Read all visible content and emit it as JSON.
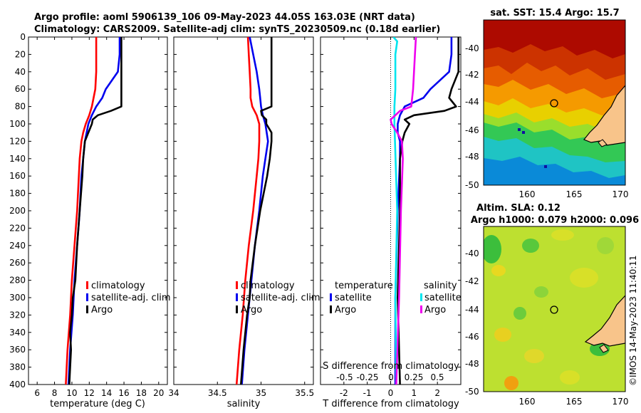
{
  "header": {
    "line1": "Argo profile: aoml 5906139_106 09-May-2023 44.05S 163.03E (NRT data)",
    "line2": "Climatology: CARS2009. Satellite-adj clim: synTS_20230509.nc (0.18d earlier)"
  },
  "credit": "©IMOS 14-May-2023 11:40:11",
  "colors": {
    "climatology": "#ff0000",
    "satellite": "#0000ee",
    "argo": "#000000",
    "t_satellite": "#0000ee",
    "s_satellite": "#00e5ee",
    "s_argo": "#ee00ee"
  },
  "chart_data": [
    {
      "type": "line",
      "name": "temperature-profile",
      "xlabel": "temperature (deg C)",
      "ylabel": "",
      "xlim": [
        5,
        21
      ],
      "ylim": [
        400,
        0
      ],
      "xticks": [
        "6",
        "8",
        "10",
        "12",
        "14",
        "16",
        "18",
        "20"
      ],
      "yticks": [
        "0",
        "20",
        "40",
        "60",
        "80",
        "100",
        "120",
        "140",
        "160",
        "180",
        "200",
        "220",
        "240",
        "260",
        "280",
        "300",
        "320",
        "340",
        "360",
        "380",
        "400"
      ],
      "legend": [
        "climatology",
        "satellite-adj. clim",
        "Argo"
      ],
      "series": [
        {
          "name": "climatology",
          "depth": [
            0,
            20,
            40,
            60,
            80,
            90,
            100,
            110,
            120,
            140,
            160,
            200,
            240,
            280,
            320,
            360,
            400
          ],
          "values": [
            12.8,
            12.8,
            12.8,
            12.7,
            12.3,
            12.0,
            11.6,
            11.3,
            11.1,
            10.9,
            10.8,
            10.6,
            10.3,
            10.0,
            9.8,
            9.5,
            9.3
          ]
        },
        {
          "name": "satellite-adj. clim",
          "depth": [
            0,
            20,
            40,
            50,
            60,
            70,
            80,
            90,
            100,
            120,
            140,
            160,
            200,
            240,
            280,
            320,
            360,
            400
          ],
          "values": [
            15.5,
            15.5,
            15.3,
            14.6,
            13.9,
            13.5,
            12.8,
            12.3,
            11.9,
            11.5,
            11.3,
            11.1,
            10.9,
            10.6,
            10.3,
            10.1,
            9.8,
            9.6
          ]
        },
        {
          "name": "Argo",
          "depth": [
            0,
            20,
            40,
            60,
            70,
            80,
            85,
            90,
            95,
            100,
            110,
            120,
            140,
            160,
            200,
            240,
            280,
            300,
            320,
            340,
            360,
            380,
            400
          ],
          "values": [
            15.7,
            15.7,
            15.7,
            15.7,
            15.7,
            15.7,
            14.5,
            13.0,
            12.4,
            12.3,
            11.9,
            11.5,
            11.3,
            11.2,
            10.9,
            10.6,
            10.4,
            10.1,
            10.0,
            9.8,
            9.9,
            9.8,
            9.7
          ]
        }
      ]
    },
    {
      "type": "line",
      "name": "salinity-profile",
      "xlabel": "salinity",
      "xlim": [
        34.0,
        35.6
      ],
      "ylim": [
        400,
        0
      ],
      "xticks": [
        "34",
        "34.5",
        "35",
        "35.5"
      ],
      "legend": [
        "climatology",
        "satellite-adj. clim",
        "Argo"
      ],
      "series": [
        {
          "name": "climatology",
          "depth": [
            0,
            20,
            40,
            60,
            70,
            80,
            90,
            100,
            120,
            140,
            160,
            200,
            240,
            280,
            320,
            360,
            400
          ],
          "values": [
            34.85,
            34.86,
            34.87,
            34.88,
            34.88,
            34.9,
            34.95,
            34.98,
            34.98,
            34.97,
            34.95,
            34.91,
            34.86,
            34.82,
            34.79,
            34.75,
            34.72
          ]
        },
        {
          "name": "satellite-adj. clim",
          "depth": [
            0,
            20,
            40,
            60,
            70,
            80,
            90,
            100,
            120,
            140,
            160,
            200,
            240,
            280,
            320,
            360,
            400
          ],
          "values": [
            34.87,
            34.91,
            34.95,
            34.98,
            34.99,
            35.0,
            35.02,
            35.05,
            35.08,
            35.05,
            35.02,
            34.98,
            34.93,
            34.89,
            34.85,
            34.81,
            34.78
          ]
        },
        {
          "name": "Argo",
          "depth": [
            0,
            20,
            40,
            60,
            80,
            85,
            90,
            95,
            100,
            110,
            120,
            140,
            160,
            200,
            240,
            280,
            300,
            320,
            360,
            400
          ],
          "values": [
            35.12,
            35.12,
            35.12,
            35.12,
            35.12,
            35.0,
            35.01,
            35.06,
            35.06,
            35.12,
            35.12,
            35.1,
            35.07,
            34.99,
            34.93,
            34.88,
            34.87,
            34.84,
            34.8,
            34.77
          ]
        }
      ]
    },
    {
      "type": "line",
      "name": "difference-profile",
      "xlabel": "T difference from climatology",
      "xlim": [
        -3.0,
        3.0
      ],
      "ylim": [
        400,
        0
      ],
      "xticks": [
        "-2",
        "-1",
        "0",
        "1",
        "2"
      ],
      "top_axis_label": "S difference from climatology",
      "top_axis_ticks": [
        "-0.5",
        "-0.25",
        "0",
        "0.25",
        "0.5"
      ],
      "legend_t_title": "temperature",
      "legend_t": [
        "satellite",
        "Argo"
      ],
      "legend_s_title": "salinity",
      "legend_s": [
        "satellite",
        "Argo"
      ],
      "series": [
        {
          "name": "T satellite",
          "depth": [
            0,
            20,
            40,
            60,
            70,
            80,
            90,
            100,
            110,
            120,
            140,
            200,
            300,
            400
          ],
          "values": [
            2.6,
            2.6,
            2.5,
            1.7,
            1.4,
            0.6,
            0.4,
            0.3,
            0.3,
            0.4,
            0.4,
            0.3,
            0.2,
            0.2
          ]
        },
        {
          "name": "T Argo",
          "depth": [
            0,
            20,
            40,
            60,
            70,
            80,
            85,
            90,
            95,
            100,
            110,
            120,
            140,
            200,
            300,
            400
          ],
          "values": [
            2.9,
            2.9,
            2.9,
            2.6,
            2.5,
            2.8,
            2.3,
            1.0,
            0.6,
            0.8,
            0.6,
            0.5,
            0.4,
            0.4,
            0.3,
            0.4
          ]
        },
        {
          "name": "S satellite",
          "depth": [
            0,
            5,
            20,
            40,
            60,
            80,
            100,
            200,
            300,
            400
          ],
          "values": [
            0.03,
            0.07,
            0.05,
            0.05,
            0.05,
            0.04,
            0.04,
            0.07,
            0.05,
            0.06
          ]
        },
        {
          "name": "S Argo",
          "depth": [
            0,
            20,
            40,
            60,
            80,
            85,
            90,
            95,
            100,
            110,
            120,
            140,
            200,
            300,
            400
          ],
          "values": [
            0.27,
            0.26,
            0.25,
            0.24,
            0.22,
            0.1,
            0.05,
            0.0,
            0.01,
            0.07,
            0.12,
            0.13,
            0.11,
            0.09,
            0.06
          ]
        }
      ]
    },
    {
      "type": "heatmap",
      "name": "sst-map",
      "title": "sat. SST: 15.4 Argo: 15.7",
      "xticks": [
        "160",
        "165",
        "170"
      ],
      "yticks": [
        "-40",
        "-42",
        "-44",
        "-46",
        "-48",
        "-50"
      ],
      "xlim": [
        156,
        170
      ],
      "ylim": [
        -50,
        -38
      ]
    },
    {
      "type": "heatmap",
      "name": "sla-map",
      "title_line1": "Altim. SLA: 0.12",
      "title_line2": "Argo h1000: 0.079 h2000: 0.096",
      "xticks": [
        "160",
        "165",
        "170"
      ],
      "yticks": [
        "-40",
        "-42",
        "-44",
        "-46",
        "-48",
        "-50"
      ],
      "xlim": [
        156,
        170
      ],
      "ylim": [
        -50,
        -38
      ]
    }
  ]
}
